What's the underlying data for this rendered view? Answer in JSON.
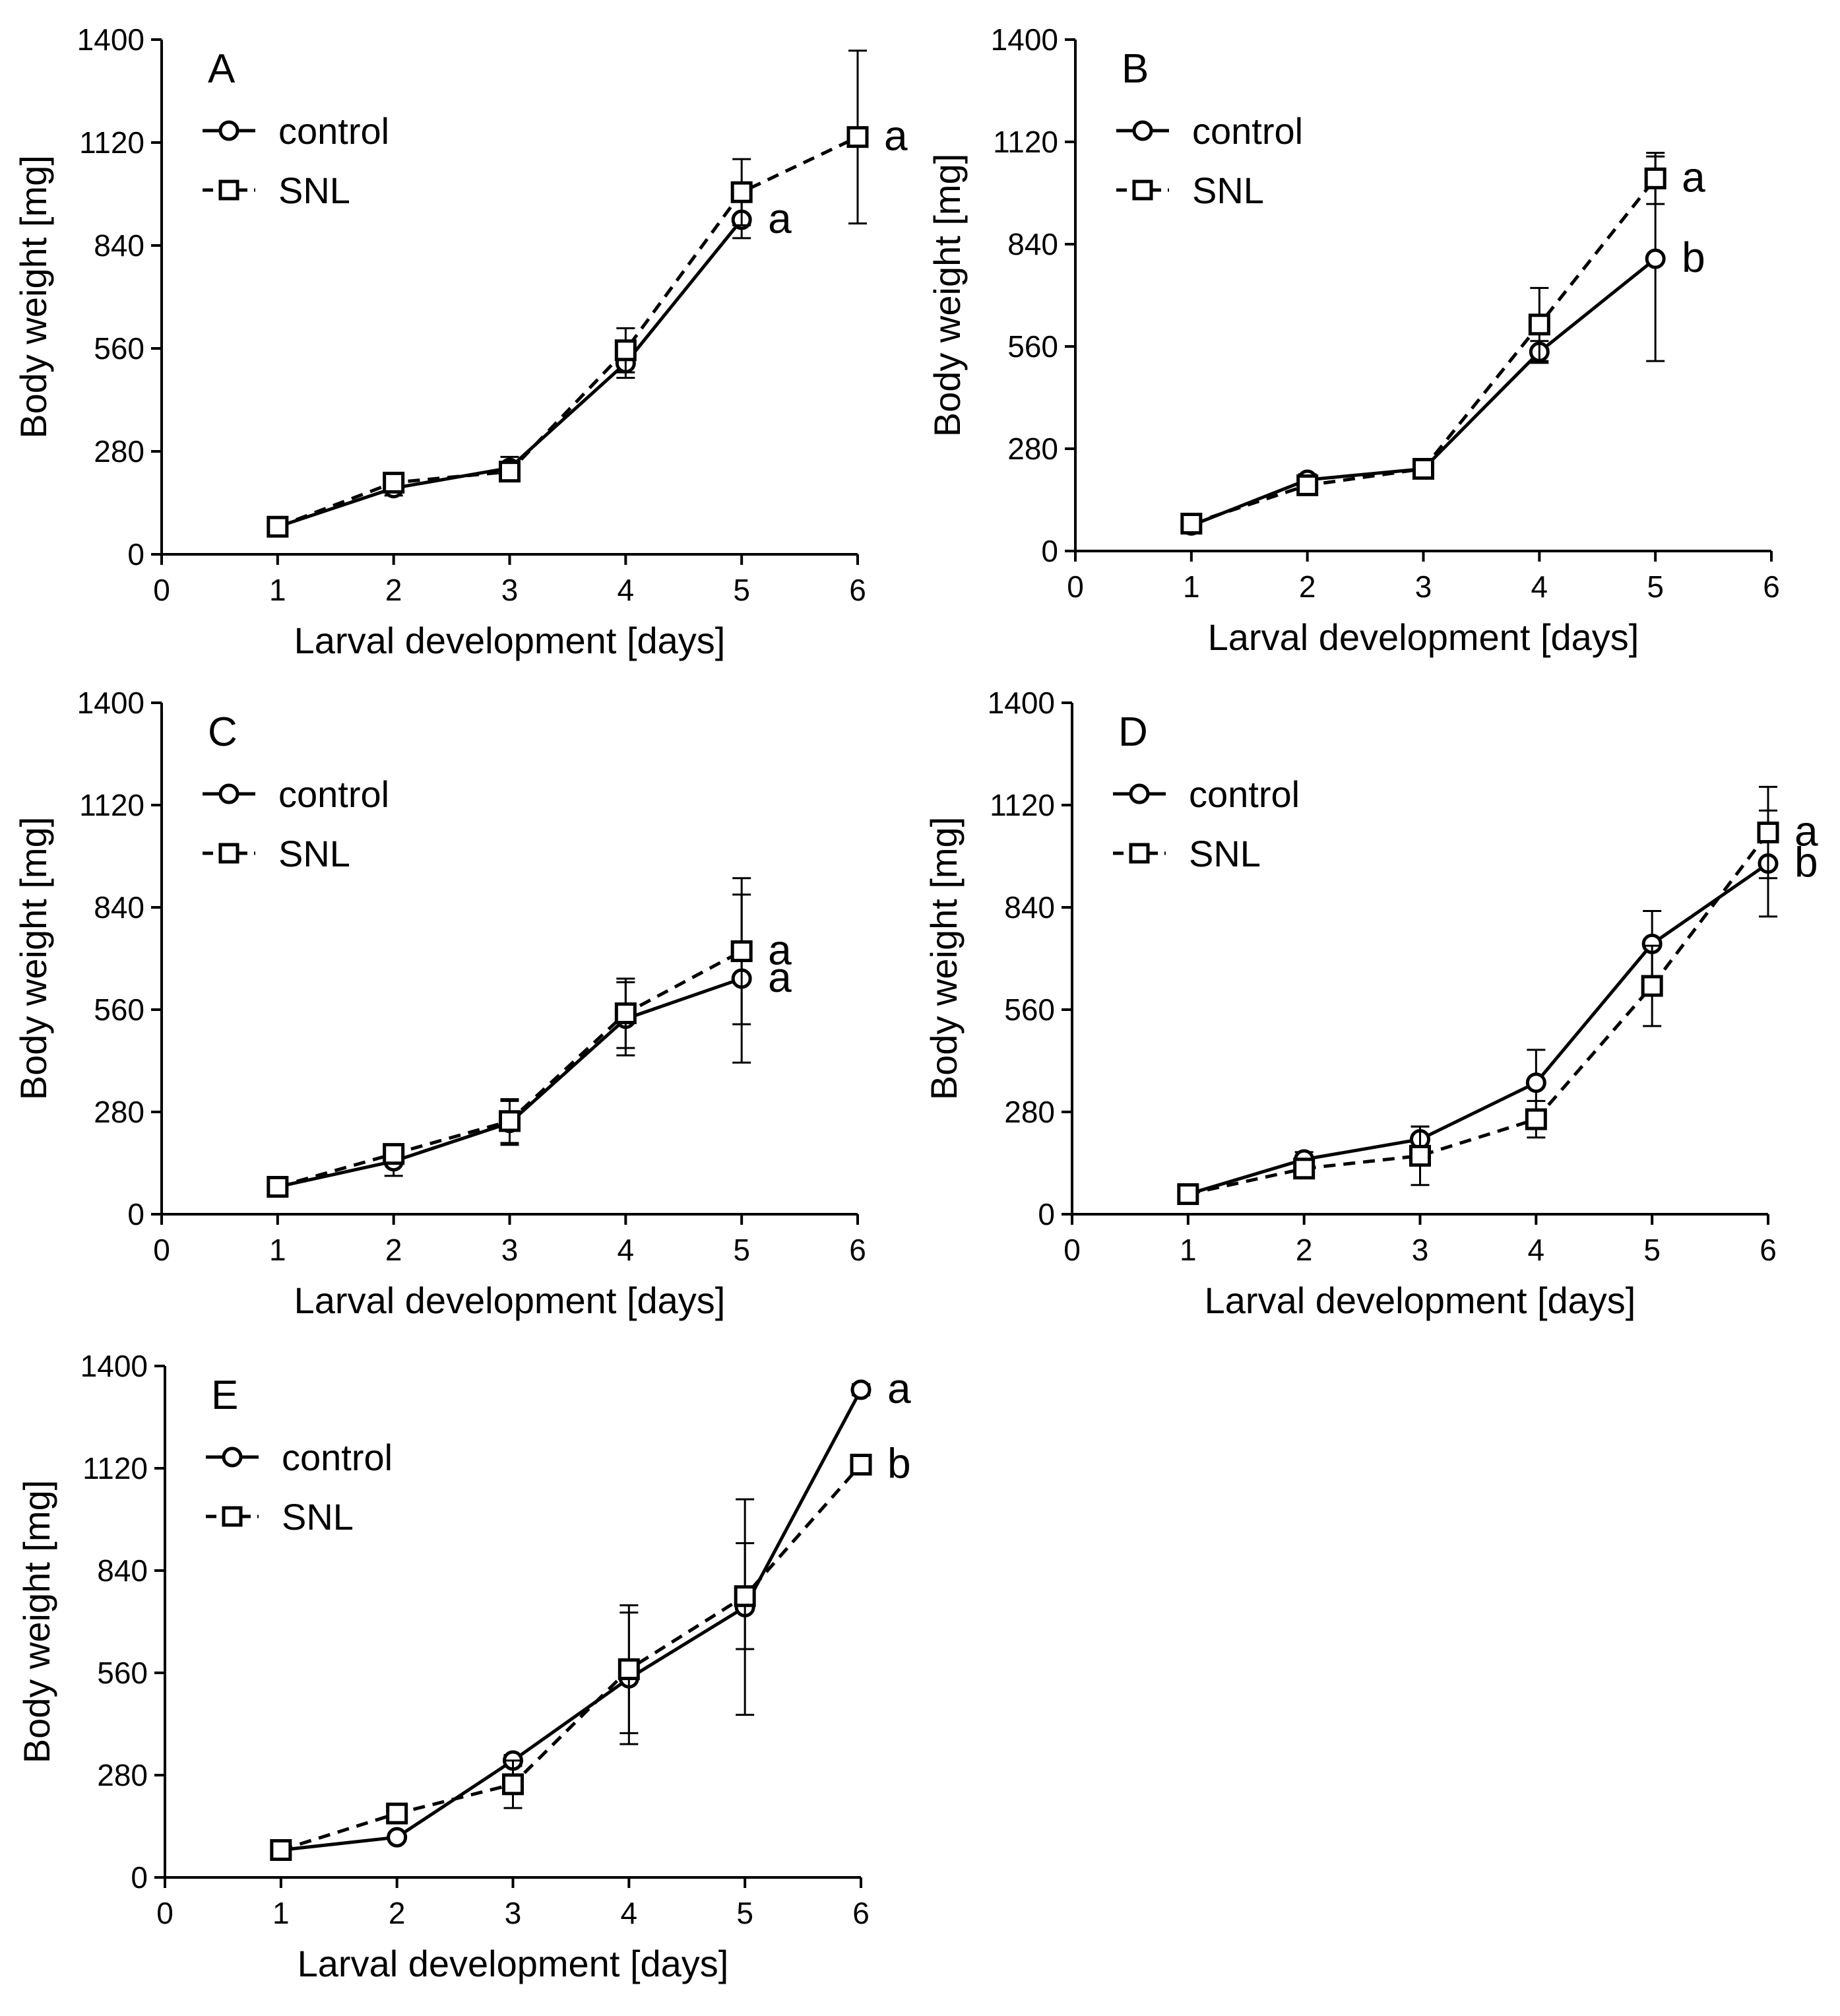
{
  "chart_data": [
    {
      "type": "line",
      "panel": "A",
      "xlabel": "Larval development [days]",
      "ylabel": "Body weight [mg]",
      "xlim": [
        0,
        6
      ],
      "ylim": [
        0,
        1400
      ],
      "xticks": [
        0,
        1,
        2,
        3,
        4,
        5,
        6
      ],
      "yticks": [
        0,
        280,
        560,
        840,
        1120,
        1400
      ],
      "legend": [
        "control",
        "SNL"
      ],
      "series": [
        {
          "name": "control",
          "marker": "circle",
          "line": "solid",
          "x": [
            1,
            2,
            3,
            4,
            5
          ],
          "y": [
            75,
            180,
            235,
            520,
            910
          ],
          "err": [
            10,
            20,
            30,
            40,
            50
          ]
        },
        {
          "name": "SNL",
          "marker": "square",
          "line": "dashed",
          "x": [
            1,
            2,
            3,
            4,
            5,
            6
          ],
          "y": [
            75,
            195,
            225,
            555,
            985,
            1135
          ],
          "err": [
            10,
            15,
            25,
            60,
            90,
            235
          ]
        }
      ],
      "annotations": [
        {
          "text": "a",
          "series": "control",
          "x": 5
        },
        {
          "text": "a",
          "series": "SNL",
          "x": 6
        }
      ]
    },
    {
      "type": "line",
      "panel": "B",
      "xlabel": "Larval development [days]",
      "ylabel": "Body weight [mg]",
      "xlim": [
        0,
        6
      ],
      "ylim": [
        0,
        1400
      ],
      "xticks": [
        0,
        1,
        2,
        3,
        4,
        5,
        6
      ],
      "yticks": [
        0,
        280,
        560,
        840,
        1120,
        1400
      ],
      "legend": [
        "control",
        "SNL"
      ],
      "series": [
        {
          "name": "control",
          "marker": "circle",
          "line": "solid",
          "x": [
            1,
            2,
            3,
            4,
            5
          ],
          "y": [
            70,
            195,
            225,
            545,
            800
          ],
          "err": [
            10,
            15,
            15,
            30,
            280
          ]
        },
        {
          "name": "SNL",
          "marker": "square",
          "line": "dashed",
          "x": [
            1,
            2,
            3,
            4,
            5
          ],
          "y": [
            75,
            180,
            225,
            620,
            1020
          ],
          "err": [
            10,
            15,
            15,
            100,
            70
          ]
        }
      ],
      "annotations": [
        {
          "text": "a",
          "series": "SNL",
          "x": 5
        },
        {
          "text": "b",
          "series": "control",
          "x": 5
        }
      ]
    },
    {
      "type": "line",
      "panel": "C",
      "xlabel": "Larval development [days]",
      "ylabel": "Body weight [mg]",
      "xlim": [
        0,
        6
      ],
      "ylim": [
        0,
        1400
      ],
      "xticks": [
        0,
        1,
        2,
        3,
        4,
        5,
        6
      ],
      "yticks": [
        0,
        280,
        560,
        840,
        1120,
        1400
      ],
      "legend": [
        "control",
        "SNL"
      ],
      "series": [
        {
          "name": "control",
          "marker": "circle",
          "line": "solid",
          "x": [
            1,
            2,
            3,
            4,
            5
          ],
          "y": [
            75,
            145,
            250,
            535,
            645
          ],
          "err": [
            10,
            40,
            60,
            100,
            230
          ]
        },
        {
          "name": "SNL",
          "marker": "square",
          "line": "dashed",
          "x": [
            1,
            2,
            3,
            4,
            5
          ],
          "y": [
            75,
            165,
            255,
            550,
            720
          ],
          "err": [
            10,
            20,
            60,
            95,
            200
          ]
        }
      ],
      "annotations": [
        {
          "text": "a",
          "series": "SNL",
          "x": 5
        },
        {
          "text": "a",
          "series": "control",
          "x": 5
        }
      ]
    },
    {
      "type": "line",
      "panel": "D",
      "xlabel": "Larval development [days]",
      "ylabel": "Body weight [mg]",
      "xlim": [
        0,
        6
      ],
      "ylim": [
        0,
        1400
      ],
      "xticks": [
        0,
        1,
        2,
        3,
        4,
        5,
        6
      ],
      "yticks": [
        0,
        280,
        560,
        840,
        1120,
        1400
      ],
      "legend": [
        "control",
        "SNL"
      ],
      "series": [
        {
          "name": "control",
          "marker": "circle",
          "line": "solid",
          "x": [
            1,
            2,
            3,
            4,
            5,
            6
          ],
          "y": [
            55,
            150,
            205,
            360,
            740,
            960
          ],
          "err": [
            10,
            20,
            35,
            90,
            90,
            145
          ]
        },
        {
          "name": "SNL",
          "marker": "square",
          "line": "dashed",
          "x": [
            1,
            2,
            3,
            4,
            5,
            6
          ],
          "y": [
            55,
            125,
            160,
            260,
            625,
            1045
          ],
          "err": [
            10,
            15,
            80,
            50,
            110,
            125
          ]
        }
      ],
      "annotations": [
        {
          "text": "a",
          "series": "SNL",
          "x": 6
        },
        {
          "text": "b",
          "series": "control",
          "x": 6
        }
      ]
    },
    {
      "type": "line",
      "panel": "E",
      "xlabel": "Larval development [days]",
      "ylabel": "Body weight [mg]",
      "xlim": [
        0,
        6
      ],
      "ylim": [
        0,
        1400
      ],
      "xticks": [
        0,
        1,
        2,
        3,
        4,
        5,
        6
      ],
      "yticks": [
        0,
        280,
        560,
        840,
        1120,
        1400
      ],
      "legend": [
        "control",
        "SNL"
      ],
      "series": [
        {
          "name": "control",
          "marker": "circle",
          "line": "solid",
          "x": [
            1,
            2,
            3,
            4,
            5,
            6
          ],
          "y": [
            75,
            110,
            320,
            545,
            740,
            1335
          ],
          "err": [
            10,
            10,
            15,
            180,
            295,
            15
          ]
        },
        {
          "name": "SNL",
          "marker": "square",
          "line": "dashed",
          "x": [
            1,
            2,
            3,
            4,
            5,
            6
          ],
          "y": [
            75,
            175,
            255,
            570,
            770,
            1130
          ],
          "err": [
            10,
            15,
            65,
            175,
            145,
            15
          ]
        }
      ],
      "annotations": [
        {
          "text": "a",
          "series": "control",
          "x": 6
        },
        {
          "text": "b",
          "series": "SNL",
          "x": 6
        }
      ]
    }
  ]
}
